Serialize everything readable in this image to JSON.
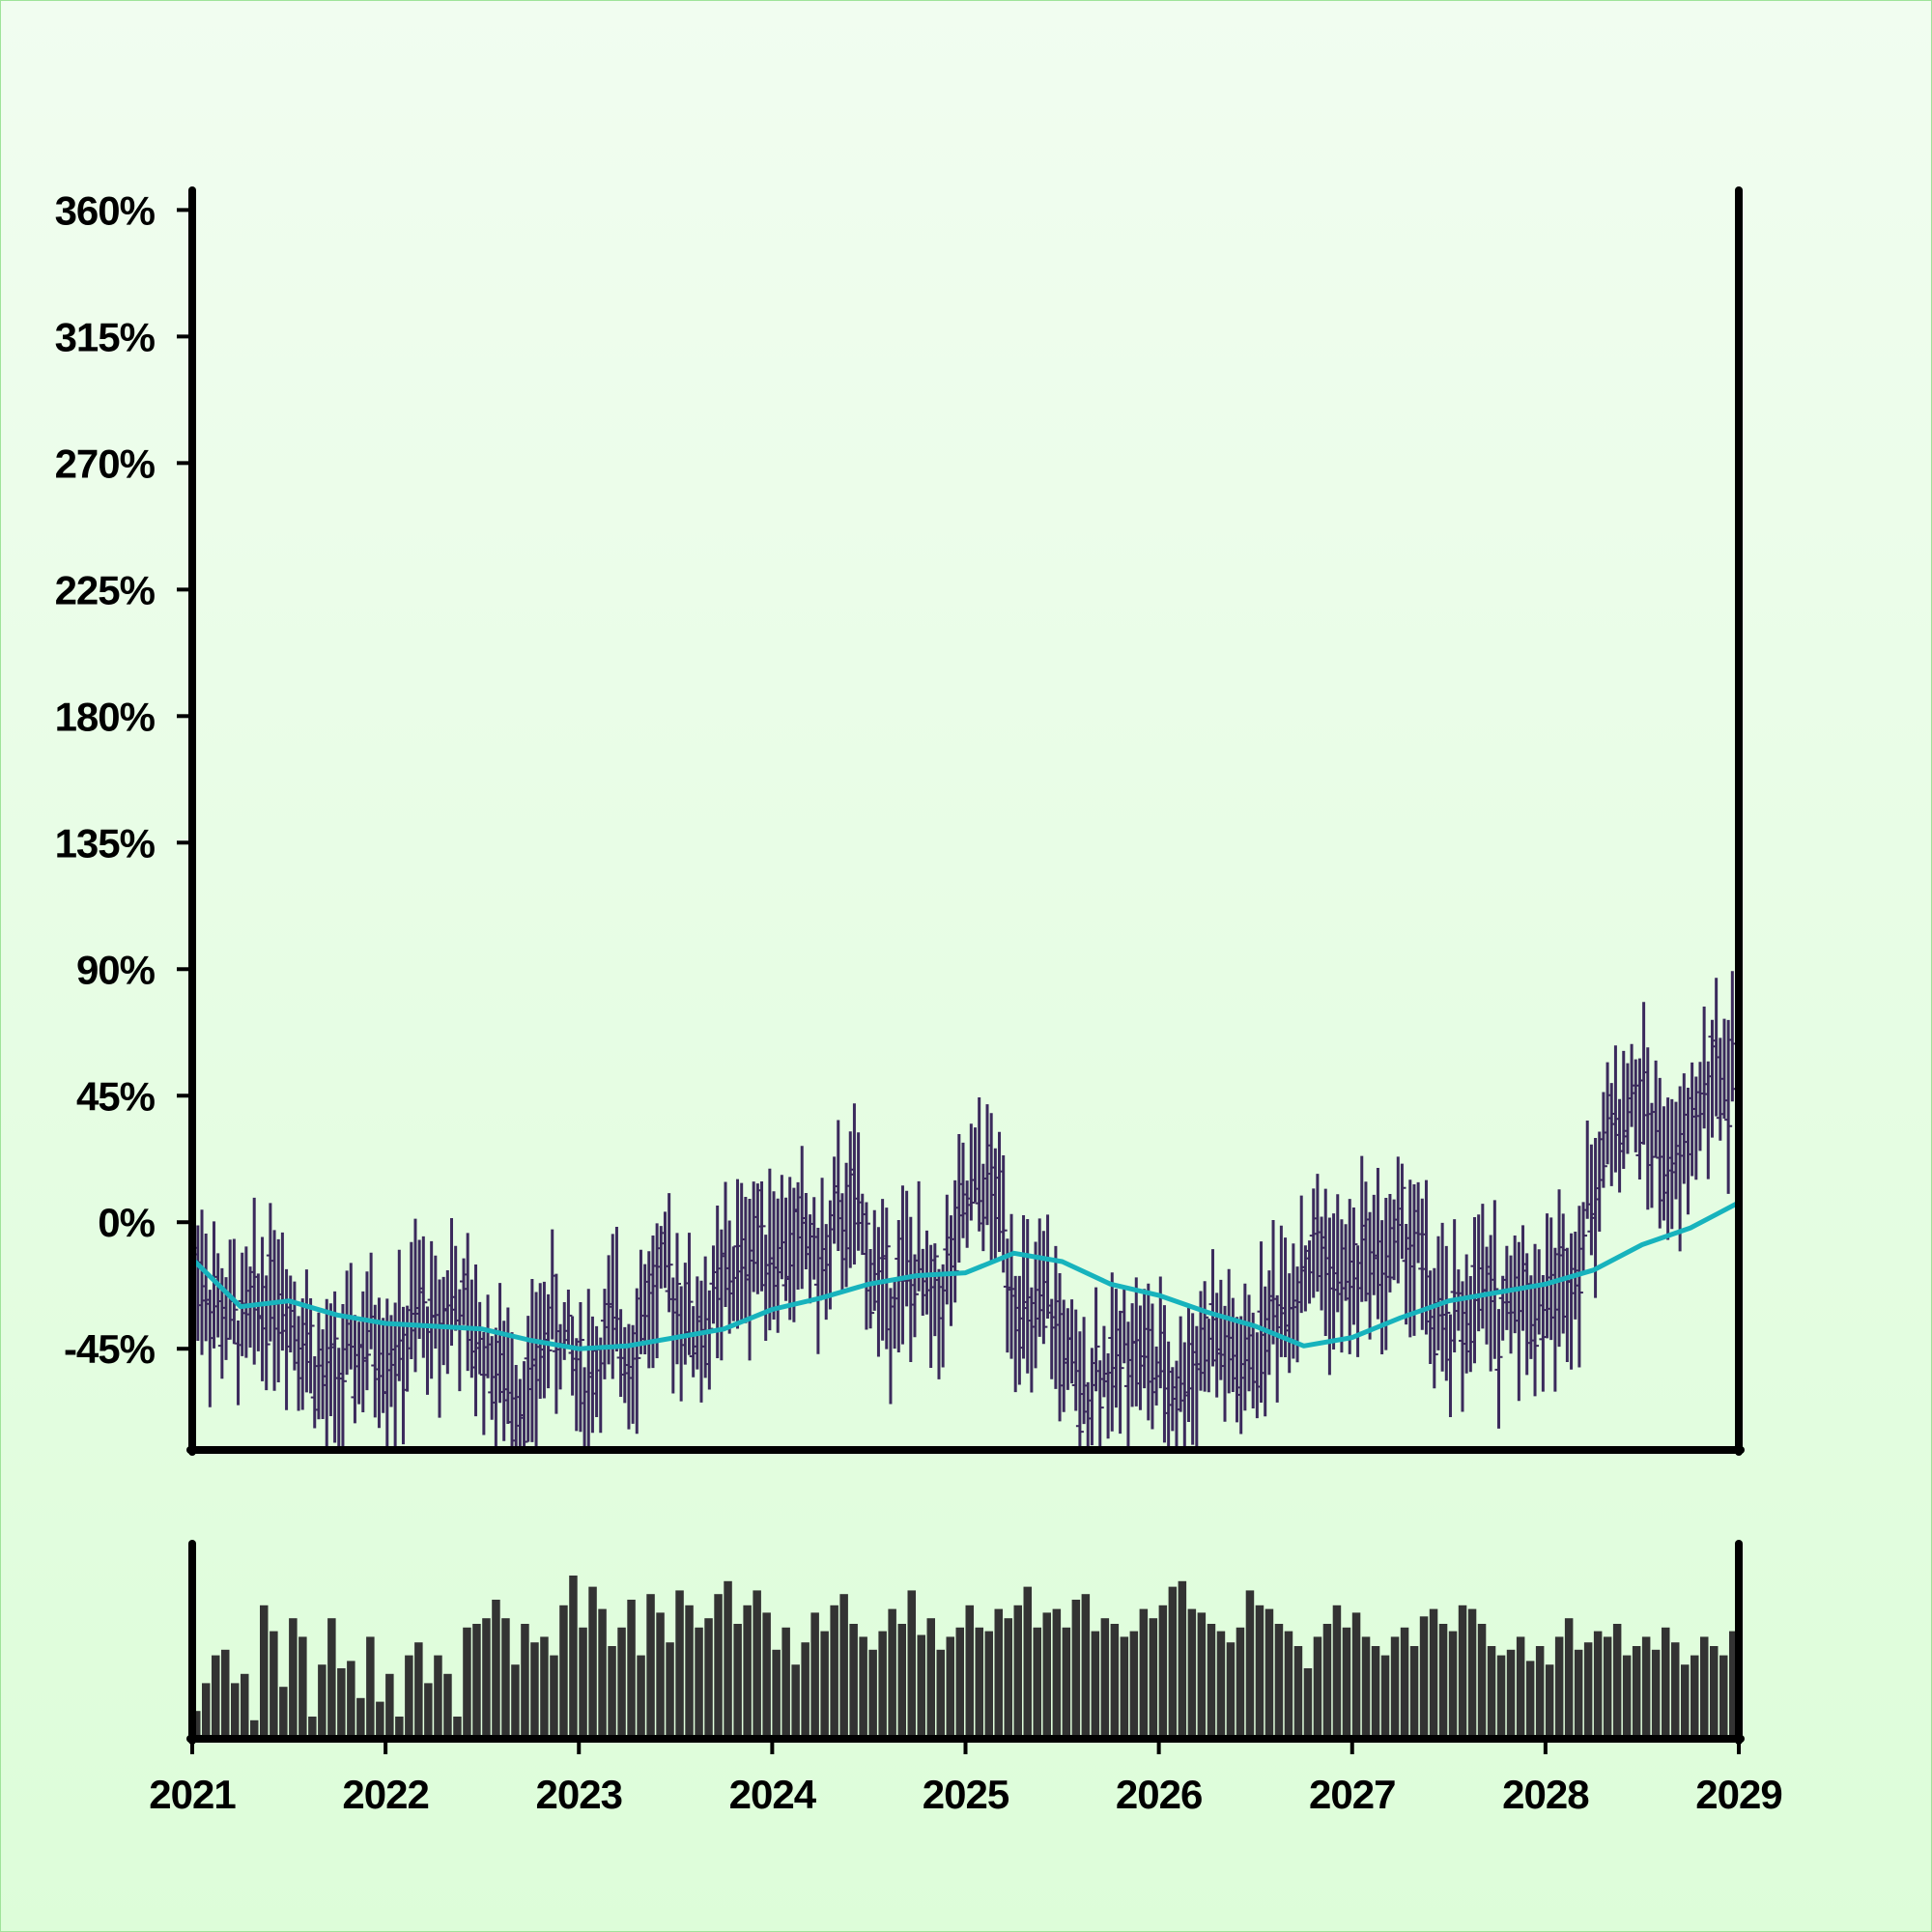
{
  "chart_data": [
    {
      "type": "ohlc",
      "panel": "price",
      "x_start": "2021-01",
      "x_end": "2028-12",
      "x_tick_labels": [
        "2021",
        "2022",
        "2023",
        "2024",
        "2025",
        "2026",
        "2027",
        "2028",
        "2029"
      ],
      "y_tick_labels": [
        "360%",
        "315%",
        "270%",
        "225%",
        "180%",
        "135%",
        "90%",
        "45%",
        "0%",
        "-45%"
      ],
      "y_tick_values": [
        360,
        315,
        270,
        225,
        180,
        135,
        90,
        45,
        0,
        -45
      ],
      "ylim": [
        -81,
        367
      ],
      "xlim": [
        "2021-01",
        "2029-01"
      ],
      "grid": false,
      "bar_color": "#3b2a5c",
      "moving_average_color": "#17b3bd",
      "series": [
        {
          "period": "2021-01",
          "mid": -8
        },
        {
          "period": "2021-02",
          "mid": -28
        },
        {
          "period": "2021-03",
          "mid": -34
        },
        {
          "period": "2021-04",
          "mid": -38
        },
        {
          "period": "2021-05",
          "mid": -30
        },
        {
          "period": "2021-06",
          "mid": -22
        },
        {
          "period": "2021-07",
          "mid": -30
        },
        {
          "period": "2021-08",
          "mid": -42
        },
        {
          "period": "2021-09",
          "mid": -58
        },
        {
          "period": "2021-10",
          "mid": -55
        },
        {
          "period": "2021-11",
          "mid": -48
        },
        {
          "period": "2021-12",
          "mid": -42
        },
        {
          "period": "2022-01",
          "mid": -45
        },
        {
          "period": "2022-02",
          "mid": -48
        },
        {
          "period": "2022-03",
          "mid": -30
        },
        {
          "period": "2022-04",
          "mid": -38
        },
        {
          "period": "2022-05",
          "mid": -25
        },
        {
          "period": "2022-06",
          "mid": -38
        },
        {
          "period": "2022-07",
          "mid": -45
        },
        {
          "period": "2022-08",
          "mid": -55
        },
        {
          "period": "2022-09",
          "mid": -62
        },
        {
          "period": "2022-10",
          "mid": -58
        },
        {
          "period": "2022-11",
          "mid": -35
        },
        {
          "period": "2022-12",
          "mid": -42
        },
        {
          "period": "2023-01",
          "mid": -55
        },
        {
          "period": "2023-02",
          "mid": -50
        },
        {
          "period": "2023-03",
          "mid": -38
        },
        {
          "period": "2023-04",
          "mid": -45
        },
        {
          "period": "2023-05",
          "mid": -30
        },
        {
          "period": "2023-06",
          "mid": -22
        },
        {
          "period": "2023-07",
          "mid": -25
        },
        {
          "period": "2023-08",
          "mid": -38
        },
        {
          "period": "2023-09",
          "mid": -35
        },
        {
          "period": "2023-10",
          "mid": -20
        },
        {
          "period": "2023-11",
          "mid": -15
        },
        {
          "period": "2023-12",
          "mid": -5
        },
        {
          "period": "2024-01",
          "mid": -8
        },
        {
          "period": "2024-02",
          "mid": -10
        },
        {
          "period": "2024-03",
          "mid": -5
        },
        {
          "period": "2024-04",
          "mid": -18
        },
        {
          "period": "2024-05",
          "mid": 0
        },
        {
          "period": "2024-06",
          "mid": 5
        },
        {
          "period": "2024-07",
          "mid": -15
        },
        {
          "period": "2024-08",
          "mid": -25
        },
        {
          "period": "2024-09",
          "mid": -20
        },
        {
          "period": "2024-10",
          "mid": -22
        },
        {
          "period": "2024-11",
          "mid": -30
        },
        {
          "period": "2024-12",
          "mid": -15
        },
        {
          "period": "2025-01",
          "mid": 5
        },
        {
          "period": "2025-02",
          "mid": 15
        },
        {
          "period": "2025-03",
          "mid": 5
        },
        {
          "period": "2025-04",
          "mid": -25
        },
        {
          "period": "2025-05",
          "mid": -40
        },
        {
          "period": "2025-06",
          "mid": -30
        },
        {
          "period": "2025-07",
          "mid": -45
        },
        {
          "period": "2025-08",
          "mid": -65
        },
        {
          "period": "2025-09",
          "mid": -50
        },
        {
          "period": "2025-10",
          "mid": -55
        },
        {
          "period": "2025-11",
          "mid": -40
        },
        {
          "period": "2025-12",
          "mid": -48
        },
        {
          "period": "2026-01",
          "mid": -55
        },
        {
          "period": "2026-02",
          "mid": -60
        },
        {
          "period": "2026-03",
          "mid": -50
        },
        {
          "period": "2026-04",
          "mid": -40
        },
        {
          "period": "2026-05",
          "mid": -45
        },
        {
          "period": "2026-06",
          "mid": -55
        },
        {
          "period": "2026-07",
          "mid": -45
        },
        {
          "period": "2026-08",
          "mid": -32
        },
        {
          "period": "2026-09",
          "mid": -25
        },
        {
          "period": "2026-10",
          "mid": -15
        },
        {
          "period": "2026-11",
          "mid": -10
        },
        {
          "period": "2026-12",
          "mid": -22
        },
        {
          "period": "2027-01",
          "mid": -18
        },
        {
          "period": "2027-02",
          "mid": -8
        },
        {
          "period": "2027-03",
          "mid": -15
        },
        {
          "period": "2027-04",
          "mid": -5
        },
        {
          "period": "2027-05",
          "mid": -10
        },
        {
          "period": "2027-06",
          "mid": -35
        },
        {
          "period": "2027-07",
          "mid": -40
        },
        {
          "period": "2027-08",
          "mid": -32
        },
        {
          "period": "2027-09",
          "mid": -25
        },
        {
          "period": "2027-10",
          "mid": -35
        },
        {
          "period": "2027-11",
          "mid": -20
        },
        {
          "period": "2027-12",
          "mid": -30
        },
        {
          "period": "2028-01",
          "mid": -28
        },
        {
          "period": "2028-02",
          "mid": -20
        },
        {
          "period": "2028-03",
          "mid": -10
        },
        {
          "period": "2028-04",
          "mid": 15
        },
        {
          "period": "2028-05",
          "mid": 35
        },
        {
          "period": "2028-06",
          "mid": 40
        },
        {
          "period": "2028-07",
          "mid": 42
        },
        {
          "period": "2028-08",
          "mid": 25
        },
        {
          "period": "2028-09",
          "mid": 15
        },
        {
          "period": "2028-10",
          "mid": 35
        },
        {
          "period": "2028-11",
          "mid": 50
        },
        {
          "period": "2028-12",
          "mid": 52
        }
      ],
      "moving_average": [
        {
          "period": "2021-01",
          "value": -13
        },
        {
          "period": "2021-04",
          "value": -30
        },
        {
          "period": "2021-07",
          "value": -28
        },
        {
          "period": "2021-10",
          "value": -33
        },
        {
          "period": "2022-01",
          "value": -36
        },
        {
          "period": "2022-04",
          "value": -37
        },
        {
          "period": "2022-07",
          "value": -38
        },
        {
          "period": "2022-10",
          "value": -42
        },
        {
          "period": "2023-01",
          "value": -45
        },
        {
          "period": "2023-04",
          "value": -44
        },
        {
          "period": "2023-07",
          "value": -41
        },
        {
          "period": "2023-10",
          "value": -38
        },
        {
          "period": "2024-01",
          "value": -31
        },
        {
          "period": "2024-04",
          "value": -27
        },
        {
          "period": "2024-07",
          "value": -22
        },
        {
          "period": "2024-10",
          "value": -19
        },
        {
          "period": "2025-01",
          "value": -18
        },
        {
          "period": "2025-04",
          "value": -11
        },
        {
          "period": "2025-07",
          "value": -14
        },
        {
          "period": "2025-10",
          "value": -22
        },
        {
          "period": "2026-01",
          "value": -26
        },
        {
          "period": "2026-04",
          "value": -32
        },
        {
          "period": "2026-07",
          "value": -37
        },
        {
          "period": "2026-10",
          "value": -44
        },
        {
          "period": "2027-01",
          "value": -41
        },
        {
          "period": "2027-04",
          "value": -34
        },
        {
          "period": "2027-07",
          "value": -28
        },
        {
          "period": "2027-10",
          "value": -25
        },
        {
          "period": "2028-01",
          "value": -22
        },
        {
          "period": "2028-04",
          "value": -17
        },
        {
          "period": "2028-07",
          "value": -8
        },
        {
          "period": "2028-10",
          "value": -2
        },
        {
          "period": "2028-12",
          "value": 7
        }
      ]
    },
    {
      "type": "bar",
      "panel": "volume",
      "bar_color": "#333333",
      "xlim": [
        "2021-01",
        "2029-01"
      ],
      "values": [
        0.15,
        0.3,
        0.45,
        0.48,
        0.3,
        0.35,
        0.1,
        0.72,
        0.58,
        0.28,
        0.65,
        0.55,
        0.12,
        0.4,
        0.65,
        0.38,
        0.42,
        0.22,
        0.55,
        0.2,
        0.35,
        0.12,
        0.45,
        0.52,
        0.3,
        0.45,
        0.35,
        0.12,
        0.6,
        0.62,
        0.65,
        0.75,
        0.65,
        0.4,
        0.62,
        0.52,
        0.55,
        0.45,
        0.72,
        0.88,
        0.6,
        0.82,
        0.7,
        0.5,
        0.6,
        0.75,
        0.45,
        0.78,
        0.68,
        0.52,
        0.8,
        0.72,
        0.6,
        0.65,
        0.78,
        0.85,
        0.62,
        0.72,
        0.8,
        0.68,
        0.48,
        0.6,
        0.4,
        0.52,
        0.68,
        0.58,
        0.72,
        0.78,
        0.62,
        0.55,
        0.48,
        0.58,
        0.7,
        0.62,
        0.8,
        0.56,
        0.65,
        0.48,
        0.55,
        0.6,
        0.72,
        0.6,
        0.58,
        0.7,
        0.65,
        0.72,
        0.82,
        0.6,
        0.68,
        0.7,
        0.6,
        0.75,
        0.78,
        0.58,
        0.65,
        0.62,
        0.55,
        0.58,
        0.7,
        0.65,
        0.72,
        0.82,
        0.85,
        0.7,
        0.68,
        0.62,
        0.58,
        0.52,
        0.6,
        0.8,
        0.72,
        0.7,
        0.62,
        0.58,
        0.5,
        0.38,
        0.55,
        0.62,
        0.72,
        0.6,
        0.68,
        0.55,
        0.5,
        0.45,
        0.55,
        0.6,
        0.5,
        0.66,
        0.7,
        0.62,
        0.58,
        0.72,
        0.7,
        0.62,
        0.5,
        0.45,
        0.48,
        0.55,
        0.42,
        0.5,
        0.4,
        0.55,
        0.65,
        0.48,
        0.52,
        0.58,
        0.55,
        0.62,
        0.45,
        0.5,
        0.55,
        0.48,
        0.6,
        0.52,
        0.4,
        0.45,
        0.55,
        0.5,
        0.45,
        0.58
      ]
    }
  ]
}
